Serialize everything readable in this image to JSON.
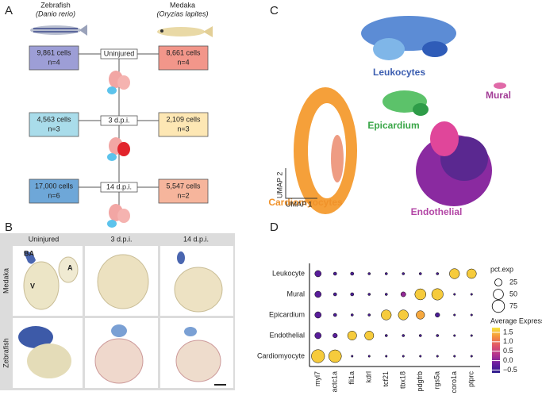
{
  "panel_labels": [
    "A",
    "B",
    "C",
    "D"
  ],
  "panel_a": {
    "species": [
      {
        "common": "Zebrafish",
        "latin": "(Danio rerio)"
      },
      {
        "common": "Medaka",
        "latin": "(Oryzias lapites)"
      }
    ],
    "timepoints": [
      {
        "label": "Uninjured",
        "zebrafish": {
          "cells": "9,861 cells",
          "n": "n=4"
        },
        "medaka": {
          "cells": "8,661 cells",
          "n": "n=4"
        }
      },
      {
        "label": "3 d.p.i.",
        "zebrafish": {
          "cells": "4,563 cells",
          "n": "n=3"
        },
        "medaka": {
          "cells": "2,109 cells",
          "n": "n=3"
        }
      },
      {
        "label": "14 d.p.i.",
        "zebrafish": {
          "cells": "17,000 cells",
          "n": "n=6"
        },
        "medaka": {
          "cells": "5,547 cells",
          "n": "n=2"
        }
      }
    ]
  },
  "panel_b": {
    "columns": [
      "Uninjured",
      "3 d.p.i.",
      "14 d.p.i."
    ],
    "rows": [
      "Medaka",
      "Zebrafish"
    ],
    "annotations": [
      "BA",
      "A",
      "V"
    ]
  },
  "panel_c": {
    "clusters": [
      "Leukocytes",
      "Mural",
      "Epicardium",
      "Cardiomyocytes",
      "Endothelial"
    ],
    "x_label": "UMAP 1",
    "y_label": "UMAP 2"
  },
  "chart_data": {
    "type": "dot",
    "x_categories": [
      "myl7",
      "actc1a",
      "fli1a",
      "kdrl",
      "tcf21",
      "tbx18",
      "pdgfrb",
      "rgs5a",
      "coro1a",
      "ptprc"
    ],
    "y_categories": [
      "Leukocyte",
      "Mural",
      "Epicardium",
      "Endothelial",
      "Cardiomyocyte"
    ],
    "pct_exp": [
      [
        20,
        5,
        5,
        3,
        3,
        3,
        3,
        3,
        50,
        45
      ],
      [
        20,
        5,
        5,
        3,
        3,
        12,
        60,
        65,
        2,
        2
      ],
      [
        20,
        5,
        3,
        3,
        50,
        50,
        35,
        10,
        2,
        2
      ],
      [
        20,
        10,
        40,
        40,
        3,
        3,
        3,
        3,
        2,
        2
      ],
      [
        85,
        80,
        2,
        2,
        2,
        2,
        2,
        2,
        2,
        2
      ]
    ],
    "avg_exp": [
      [
        -0.3,
        -0.4,
        -0.4,
        -0.4,
        -0.4,
        -0.4,
        -0.4,
        -0.4,
        1.6,
        1.6
      ],
      [
        -0.3,
        -0.4,
        -0.4,
        -0.4,
        -0.4,
        0.1,
        1.6,
        1.6,
        -0.4,
        -0.4
      ],
      [
        -0.3,
        -0.4,
        -0.4,
        -0.4,
        1.6,
        1.6,
        1.4,
        -0.4,
        -0.4,
        -0.4
      ],
      [
        -0.3,
        -0.3,
        1.6,
        1.6,
        -0.4,
        -0.4,
        -0.4,
        -0.4,
        -0.4,
        -0.4
      ],
      [
        1.6,
        1.6,
        -0.4,
        -0.4,
        -0.4,
        -0.4,
        -0.4,
        -0.4,
        -0.4,
        -0.4
      ]
    ],
    "size_legend_title": "pct.exp",
    "size_ticks": [
      25,
      50,
      75
    ],
    "color_legend_title": "Average Expression",
    "color_lim": [
      -0.65,
      1.75
    ],
    "color_ticks": [
      1.5,
      {
        "value": 1.0,
        "label": "1.0"
      },
      0.5,
      {
        "value": 0.0,
        "label": "0.0"
      },
      {
        "value": -0.5,
        "label": "−0.5"
      }
    ],
    "colormap": [
      "#2a1a8a",
      "#6a1fa0",
      "#b2338f",
      "#e0566a",
      "#f5923f",
      "#f7e53a"
    ]
  }
}
